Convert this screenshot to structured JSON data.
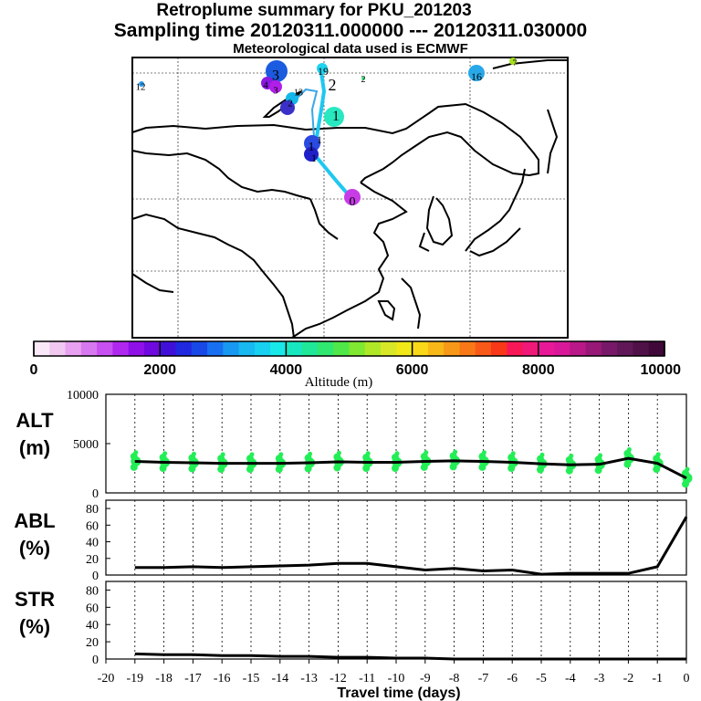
{
  "header": {
    "title": "Retroplume summary for PKU_201203",
    "sampling": "Sampling time   20120311.000000 --- 20120311.030000",
    "met": "Meteorological data used is ECMWF"
  },
  "colorbar": {
    "ticks": [
      "0",
      "2000",
      "4000",
      "6000",
      "8000",
      "10000"
    ],
    "label": "Altitude (m)"
  },
  "map": {
    "cluster_labels": [
      "0",
      "1",
      "1",
      "1",
      "2",
      "2",
      "3",
      "3",
      "4",
      "7",
      "12",
      "13",
      "16",
      "19"
    ]
  },
  "chart_data": [
    {
      "type": "line",
      "name": "ALT",
      "ylabel": "ALT (m)",
      "ylim": [
        0,
        10000
      ],
      "ytick_labels": [
        "10000",
        "5000",
        "0"
      ],
      "x": [
        0,
        -1,
        -2,
        -3,
        -4,
        -5,
        -6,
        -7,
        -8,
        -9,
        -10,
        -11,
        -12,
        -13,
        -14,
        -15,
        -16,
        -17,
        -18,
        -19
      ],
      "values": [
        1500,
        3000,
        3500,
        2900,
        2850,
        2950,
        3100,
        3200,
        3250,
        3200,
        3100,
        3100,
        3150,
        3050,
        3000,
        3000,
        3000,
        3050,
        3100,
        3200
      ]
    },
    {
      "type": "line",
      "name": "ABL",
      "ylabel": "ABL (%)",
      "ylim": [
        0,
        90
      ],
      "ytick_labels": [
        "80",
        "60",
        "40",
        "20",
        "0"
      ],
      "x": [
        0,
        -1,
        -2,
        -3,
        -4,
        -5,
        -6,
        -7,
        -8,
        -9,
        -10,
        -11,
        -12,
        -13,
        -14,
        -15,
        -16,
        -17,
        -18,
        -19
      ],
      "values": [
        70,
        10,
        2,
        2,
        2,
        1,
        6,
        5,
        8,
        6,
        10,
        14,
        14,
        12,
        11,
        10,
        9,
        10,
        9,
        9
      ]
    },
    {
      "type": "line",
      "name": "STR",
      "ylabel": "STR (%)",
      "ylim": [
        0,
        90
      ],
      "ytick_labels": [
        "80",
        "60",
        "40",
        "20",
        "0"
      ],
      "x": [
        0,
        -1,
        -2,
        -3,
        -4,
        -5,
        -6,
        -7,
        -8,
        -9,
        -10,
        -11,
        -12,
        -13,
        -14,
        -15,
        -16,
        -17,
        -18,
        -19
      ],
      "values": [
        0,
        0,
        0,
        0,
        0,
        0,
        0,
        0,
        0,
        1,
        1,
        2,
        2,
        3,
        3,
        4,
        4,
        5,
        5,
        6
      ]
    }
  ],
  "xaxis": {
    "label": "Travel time (days)",
    "ticks": [
      "-20",
      "-19",
      "-18",
      "-17",
      "-16",
      "-15",
      "-14",
      "-13",
      "-12",
      "-11",
      "-10",
      "-9",
      "-8",
      "-7",
      "-6",
      "-5",
      "-4",
      "-3",
      "-2",
      "-1",
      "0"
    ]
  },
  "colors": {
    "line": "#000000",
    "scatter": "#22ee55"
  }
}
